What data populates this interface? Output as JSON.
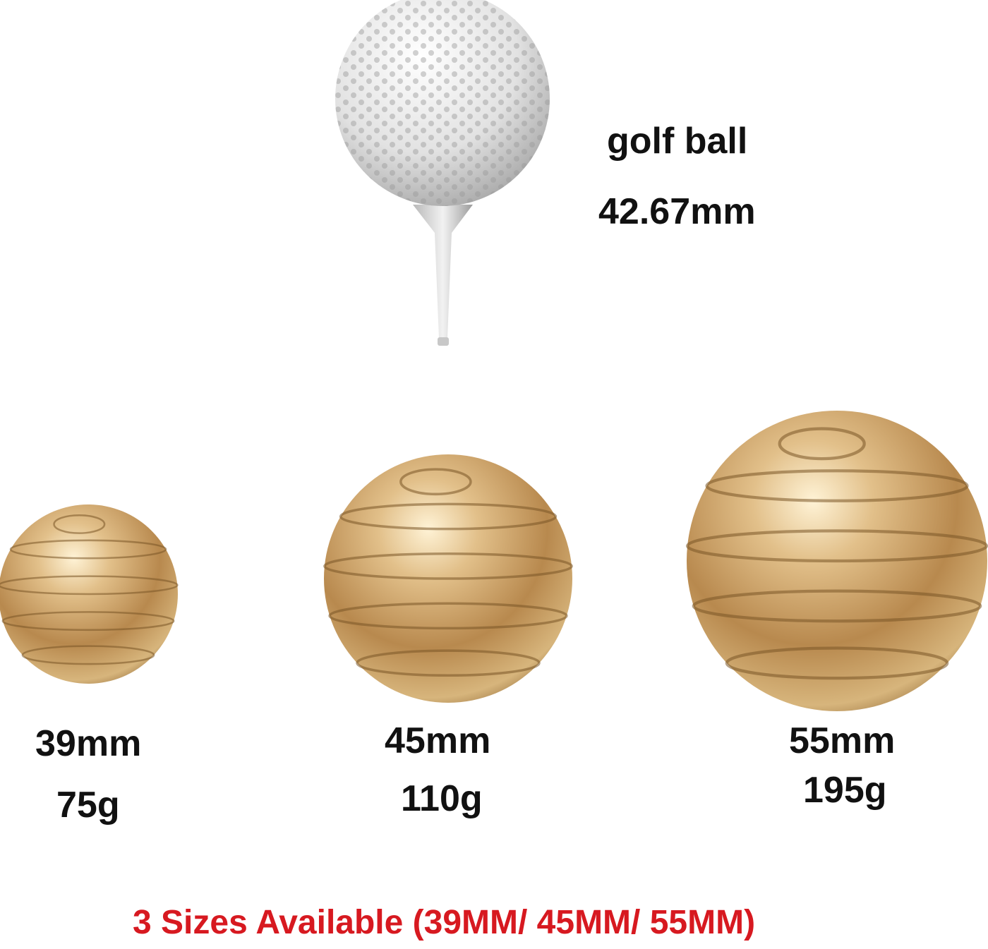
{
  "golf_ball": {
    "name": "golf ball",
    "diameter": "42.67mm"
  },
  "sizes": [
    {
      "diameter": "39mm",
      "weight": "75g"
    },
    {
      "diameter": "45mm",
      "weight": "110g"
    },
    {
      "diameter": "55mm",
      "weight": "195g"
    }
  ],
  "footer": {
    "text": "3 Sizes Available (39MM/ 45MM/ 55MM)",
    "color": "#d71920"
  },
  "colors": {
    "gold": "#c9a46a",
    "golf_ball": "#e6e6e6"
  }
}
